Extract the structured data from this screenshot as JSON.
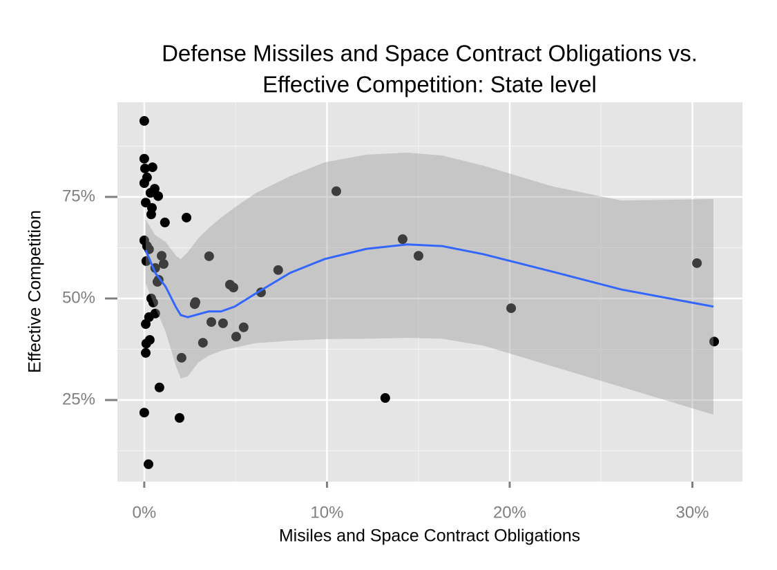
{
  "chart_data": {
    "type": "scatter",
    "title": [
      "Defense Missiles and Space Contract Obligations vs.",
      "Effective Competition: State level"
    ],
    "x_label": "Misiles and Space Contract Obligations",
    "y_label": "Effective Competition",
    "xlim": [
      -1.47,
      32.74
    ],
    "ylim": [
      4.93,
      98.3
    ],
    "xticks": [
      {
        "value": 0,
        "label": "0%"
      },
      {
        "value": 10,
        "label": "10%"
      },
      {
        "value": 20,
        "label": "20%"
      },
      {
        "value": 30,
        "label": "30%"
      }
    ],
    "yticks": [
      {
        "value": 25,
        "label": "25%"
      },
      {
        "value": 50,
        "label": "50%"
      },
      {
        "value": 75,
        "label": "75%"
      }
    ],
    "x_minor_grid": [
      5,
      15,
      25
    ],
    "y_minor_grid": [
      12.5,
      37.5,
      62.5,
      87.5
    ],
    "grid": true,
    "point_color": "#000000",
    "x": [
      0,
      0,
      0.04,
      0.45,
      0,
      0.15,
      0.57,
      0.34,
      0.76,
      0.08,
      0.42,
      0.38,
      1.13,
      2.31,
      0,
      0.15,
      0.26,
      0.95,
      3.55,
      0.11,
      1.06,
      0.6,
      0.79,
      0.72,
      7.33,
      4.69,
      4.88,
      6.39,
      0.38,
      0.49,
      2.8,
      2.76,
      0.6,
      0.26,
      0.08,
      3.67,
      4.31,
      5.44,
      5.03,
      3.21,
      0.3,
      0.11,
      0.08,
      2.04,
      0.83,
      0,
      1.93,
      0.23,
      10.51,
      14.14,
      15.01,
      13.19,
      20.08,
      30.25,
      31.19
    ],
    "y": [
      93.7,
      84.4,
      82,
      82.3,
      78.4,
      79.8,
      77,
      76,
      75.2,
      73.6,
      72.3,
      70.7,
      68.7,
      69.9,
      64.3,
      62.9,
      62.1,
      60.5,
      60.4,
      59.2,
      58.5,
      57.5,
      54.6,
      54.1,
      57,
      53.4,
      52.7,
      51.5,
      50,
      49,
      49.1,
      48.6,
      46.3,
      45.4,
      43.7,
      44.2,
      43.9,
      42.9,
      40.6,
      39.1,
      39.8,
      38.9,
      36.6,
      35.4,
      28.1,
      21.9,
      20.6,
      9.2,
      76.4,
      64.6,
      60.5,
      25.5,
      47.6,
      58.7,
      39.4
    ],
    "smooth": {
      "color": "#3366ff",
      "band_color": "#999999",
      "x": [
        0.08,
        0.6,
        1.17,
        1.74,
        2,
        2.38,
        2.95,
        3.52,
        4.2,
        4.95,
        6.09,
        7.98,
        9.87,
        12.14,
        14.4,
        16.3,
        18.56,
        22.34,
        26.12,
        31.15
      ],
      "y": [
        61.9,
        56.3,
        52.9,
        47.8,
        45.9,
        45.4,
        46.1,
        46.8,
        46.8,
        48,
        51.2,
        56.3,
        59.7,
        62.2,
        63.3,
        62.9,
        60.9,
        56.6,
        52.2,
        48
      ],
      "ymax": [
        69.4,
        65.6,
        63.9,
        60.5,
        59.7,
        61.4,
        64.8,
        67.3,
        69.9,
        72.4,
        75.9,
        80.1,
        83.5,
        85.4,
        85.9,
        85.2,
        82.7,
        77.6,
        74.1,
        74.5
      ],
      "ymin": [
        53.7,
        47.8,
        41.8,
        33.3,
        30.3,
        30.8,
        34.2,
        35.9,
        37.1,
        37.9,
        39,
        39.6,
        40,
        40.1,
        40.3,
        40.1,
        38.4,
        33.3,
        28.2,
        21.4
      ]
    }
  }
}
